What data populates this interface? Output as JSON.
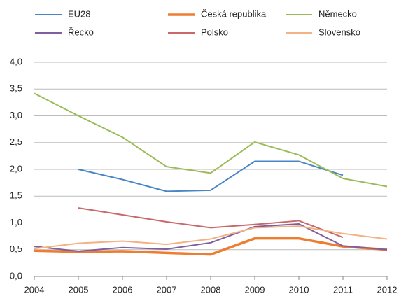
{
  "chart_data": {
    "type": "line",
    "x": [
      2004,
      2005,
      2006,
      2007,
      2008,
      2009,
      2010,
      2011,
      2012
    ],
    "xlim": [
      2004,
      2012
    ],
    "xticks": [
      2004,
      2005,
      2006,
      2007,
      2008,
      2009,
      2010,
      2011,
      2012
    ],
    "ylim": [
      0,
      4
    ],
    "yticks": [
      {
        "value": 0,
        "label": "0,0"
      },
      {
        "value": 0.5,
        "label": "0,5"
      },
      {
        "value": 1,
        "label": "1,0"
      },
      {
        "value": 1.5,
        "label": "1,5"
      },
      {
        "value": 2,
        "label": "2,0"
      },
      {
        "value": 2.5,
        "label": "2,5"
      },
      {
        "value": 3,
        "label": "3,0"
      },
      {
        "value": 3.5,
        "label": "3,5"
      },
      {
        "value": 4,
        "label": "4,0"
      }
    ],
    "grid": true,
    "legend": "top",
    "series": [
      {
        "name": "EU28",
        "color": "#4a86c5",
        "values": [
          null,
          2.0,
          1.81,
          1.59,
          1.61,
          2.15,
          2.15,
          1.89,
          null
        ]
      },
      {
        "name": "Česká republika",
        "color": "#ed7d31",
        "values": [
          0.48,
          0.46,
          0.47,
          0.44,
          0.41,
          0.71,
          0.71,
          0.56,
          0.5
        ]
      },
      {
        "name": "Německo",
        "color": "#9bbb59",
        "values": [
          3.42,
          3.0,
          2.6,
          2.05,
          1.93,
          2.51,
          2.27,
          1.83,
          1.68
        ]
      },
      {
        "name": "Řecko",
        "color": "#7f5fa0",
        "values": [
          0.56,
          0.47,
          0.54,
          0.51,
          0.63,
          0.93,
          0.98,
          0.57,
          0.5
        ]
      },
      {
        "name": "Polsko",
        "color": "#c8686a",
        "values": [
          null,
          1.28,
          1.15,
          1.02,
          0.91,
          0.97,
          1.04,
          0.73,
          null
        ]
      },
      {
        "name": "Slovensko",
        "color": "#f4b183",
        "values": [
          0.52,
          0.62,
          0.66,
          0.6,
          0.7,
          0.91,
          0.94,
          0.8,
          0.7
        ]
      }
    ]
  }
}
